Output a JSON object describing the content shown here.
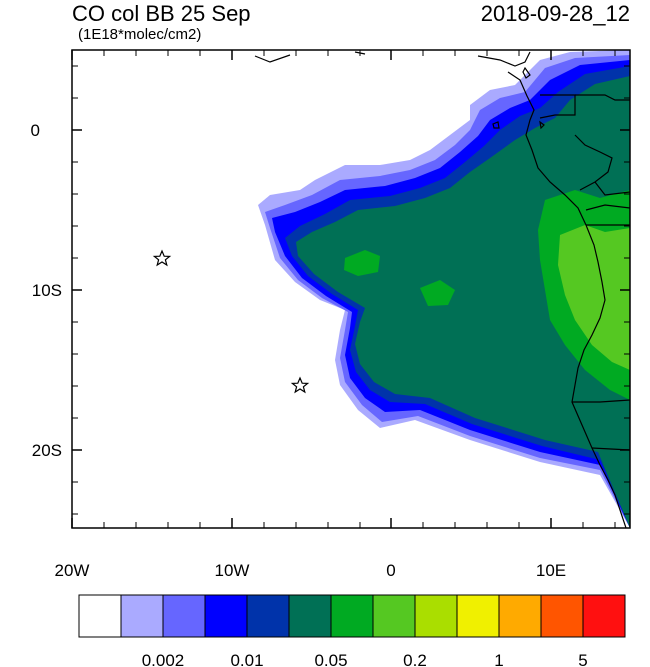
{
  "header": {
    "title": "CO col BB 25 Sep",
    "units": "(1E18*molec/cm2)",
    "valid_time": "2018-09-28_12"
  },
  "map": {
    "lon_range": [
      -20,
      15
    ],
    "lat_range": [
      -25,
      5
    ],
    "x_tick_labels": [
      "20W",
      "10W",
      "0",
      "10E"
    ],
    "y_tick_labels": [
      "0",
      "10S",
      "20S"
    ],
    "markers": [
      {
        "symbol": "star",
        "lon": -14.3,
        "lat": -8.0
      },
      {
        "symbol": "star",
        "lon": -5.7,
        "lat": -16.0
      }
    ]
  },
  "colorbar": {
    "colors": [
      "#ffffff",
      "#aaaaff",
      "#6666ff",
      "#0000ff",
      "#0033aa",
      "#007055",
      "#00aa22",
      "#55c822",
      "#aade00",
      "#f0f000",
      "#ffaa00",
      "#ff5500",
      "#ff1010"
    ],
    "labels": [
      "0.002",
      "0.01",
      "0.05",
      "0.2",
      "1",
      "5"
    ]
  }
}
